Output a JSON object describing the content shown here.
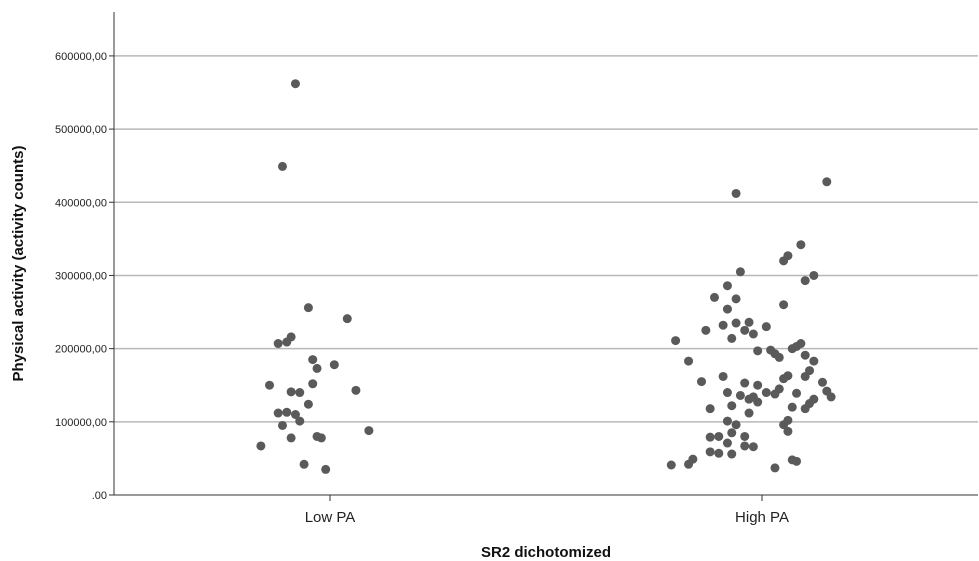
{
  "chart_data": {
    "type": "scatter",
    "title": "",
    "xlabel": "SR2 dichotomized",
    "ylabel": "Physical activity (activity counts)",
    "categories": [
      "Low PA",
      "High PA"
    ],
    "ylim": [
      0,
      660000
    ],
    "yticks": [
      0,
      100000,
      200000,
      300000,
      400000,
      500000,
      600000
    ],
    "ytick_labels": [
      ".00",
      "100000,00",
      "200000,00",
      "300000,00",
      "400000,00",
      "500000,00",
      "600000,00"
    ],
    "grid": "horizontal",
    "point_color": "#5a5a5a",
    "series": [
      {
        "category": "Low PA",
        "points": [
          [
            -0.08,
            562000
          ],
          [
            -0.11,
            449000
          ],
          [
            -0.05,
            256000
          ],
          [
            -0.12,
            207000
          ],
          [
            -0.1,
            209000
          ],
          [
            -0.09,
            216000
          ],
          [
            -0.14,
            150000
          ],
          [
            -0.09,
            141000
          ],
          [
            -0.07,
            140000
          ],
          [
            -0.1,
            113000
          ],
          [
            -0.08,
            110000
          ],
          [
            -0.12,
            112000
          ],
          [
            -0.07,
            101000
          ],
          [
            -0.11,
            95000
          ],
          [
            -0.09,
            78000
          ],
          [
            -0.16,
            67000
          ],
          [
            -0.06,
            42000
          ],
          [
            -0.04,
            185000
          ],
          [
            -0.03,
            173000
          ],
          [
            -0.04,
            152000
          ],
          [
            -0.05,
            124000
          ],
          [
            0.04,
            241000
          ],
          [
            0.01,
            178000
          ],
          [
            0.06,
            143000
          ],
          [
            -0.03,
            80000
          ],
          [
            -0.02,
            78000
          ],
          [
            0.09,
            88000
          ],
          [
            -0.01,
            35000
          ]
        ]
      },
      {
        "category": "High PA",
        "points": [
          [
            -0.06,
            412000
          ],
          [
            0.15,
            428000
          ],
          [
            0.09,
            342000
          ],
          [
            0.06,
            327000
          ],
          [
            0.05,
            320000
          ],
          [
            0.12,
            300000
          ],
          [
            0.1,
            293000
          ],
          [
            -0.05,
            305000
          ],
          [
            -0.08,
            286000
          ],
          [
            -0.11,
            270000
          ],
          [
            -0.06,
            268000
          ],
          [
            -0.08,
            254000
          ],
          [
            0.05,
            260000
          ],
          [
            -0.03,
            236000
          ],
          [
            -0.06,
            235000
          ],
          [
            -0.09,
            232000
          ],
          [
            -0.04,
            225000
          ],
          [
            -0.02,
            220000
          ],
          [
            0.01,
            230000
          ],
          [
            -0.13,
            225000
          ],
          [
            -0.2,
            211000
          ],
          [
            -0.07,
            214000
          ],
          [
            0.09,
            207000
          ],
          [
            0.08,
            203000
          ],
          [
            0.07,
            200000
          ],
          [
            0.1,
            191000
          ],
          [
            0.02,
            198000
          ],
          [
            0.03,
            193000
          ],
          [
            -0.01,
            197000
          ],
          [
            0.04,
            188000
          ],
          [
            -0.17,
            183000
          ],
          [
            0.12,
            183000
          ],
          [
            0.11,
            170000
          ],
          [
            0.06,
            163000
          ],
          [
            0.05,
            159000
          ],
          [
            -0.14,
            155000
          ],
          [
            -0.09,
            162000
          ],
          [
            0.1,
            162000
          ],
          [
            -0.04,
            153000
          ],
          [
            0.14,
            154000
          ],
          [
            -0.01,
            150000
          ],
          [
            0.04,
            145000
          ],
          [
            -0.08,
            140000
          ],
          [
            0.08,
            139000
          ],
          [
            0.15,
            142000
          ],
          [
            0.01,
            140000
          ],
          [
            0.03,
            138000
          ],
          [
            -0.05,
            136000
          ],
          [
            -0.02,
            134000
          ],
          [
            0.16,
            134000
          ],
          [
            -0.03,
            131000
          ],
          [
            0.12,
            131000
          ],
          [
            0.11,
            125000
          ],
          [
            -0.01,
            127000
          ],
          [
            -0.07,
            122000
          ],
          [
            0.07,
            120000
          ],
          [
            -0.12,
            118000
          ],
          [
            0.1,
            118000
          ],
          [
            -0.03,
            112000
          ],
          [
            0.06,
            102000
          ],
          [
            -0.08,
            101000
          ],
          [
            -0.06,
            96000
          ],
          [
            0.05,
            96000
          ],
          [
            0.06,
            87000
          ],
          [
            -0.07,
            85000
          ],
          [
            -0.1,
            80000
          ],
          [
            -0.04,
            80000
          ],
          [
            -0.12,
            79000
          ],
          [
            -0.08,
            71000
          ],
          [
            -0.04,
            67000
          ],
          [
            -0.02,
            66000
          ],
          [
            -0.12,
            59000
          ],
          [
            -0.1,
            57000
          ],
          [
            -0.07,
            56000
          ],
          [
            -0.16,
            49000
          ],
          [
            -0.17,
            42000
          ],
          [
            0.07,
            48000
          ],
          [
            -0.21,
            41000
          ],
          [
            0.03,
            37000
          ],
          [
            0.08,
            46000
          ]
        ]
      }
    ]
  }
}
